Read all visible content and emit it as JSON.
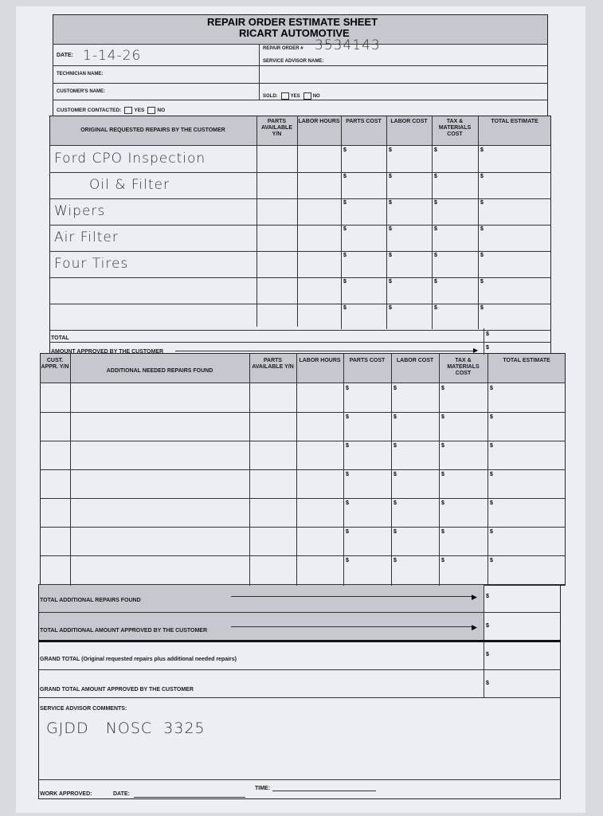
{
  "form": {
    "title": "REPAIR ORDER ESTIMATE SHEET",
    "company": "RICART AUTOMOTIVE",
    "date_label": "DATE:",
    "date_value": "1-14-26",
    "repair_order_label": "REPAIR ORDER #",
    "repair_order_value": "3534143",
    "technician_label": "TECHNICIAN NAME:",
    "service_advisor_label": "SERVICE ADVISOR NAME:",
    "customer_name_label": "CUSTOMER'S NAME:",
    "sold_label": "SOLD:",
    "yes": "YES",
    "no": "NO",
    "customer_contacted_label": "CUSTOMER CONTACTED:"
  },
  "original_table": {
    "headers": [
      "ORIGINAL REQUESTED REPAIRS BY THE CUSTOMER",
      "PARTS AVAILABLE Y/N",
      "LABOR HOURS",
      "PARTS COST",
      "LABOR COST",
      "TAX & MATERIALS COST",
      "TOTAL ESTIMATE"
    ],
    "rows": [
      "Ford CPO Inspection",
      "Oil & Filter",
      "Wipers",
      "Air Filter",
      "Four Tires",
      "",
      ""
    ],
    "dollar": "$",
    "total_label": "TOTAL",
    "approved_label": "AMOUNT APPROVED BY THE CUSTOMER"
  },
  "additional_table": {
    "headers": [
      "CUST. APPR. Y/N",
      "ADDITIONAL NEEDED REPAIRS FOUND",
      "PARTS AVAILABLE Y/N",
      "LABOR HOURS",
      "PARTS COST",
      "LABOR COST",
      "TAX & MATERIALS COST",
      "TOTAL ESTIMATE"
    ]
  },
  "totals": {
    "additional_found": "TOTAL ADDITIONAL REPAIRS FOUND",
    "additional_approved": "TOTAL ADDITIONAL AMOUNT APPROVED BY THE CUSTOMER",
    "grand_total": "GRAND TOTAL (Original requested repairs plus additional needed repairs)",
    "grand_total_approved": "GRAND TOTAL AMOUNT APPROVED BY THE CUSTOMER"
  },
  "comments": {
    "label": "SERVICE ADVISOR COMMENTS:",
    "value": "GJDD   NOSC  3325"
  },
  "footer": {
    "work_approved": "WORK APPROVED:",
    "date": "DATE:",
    "time": "TIME:"
  }
}
